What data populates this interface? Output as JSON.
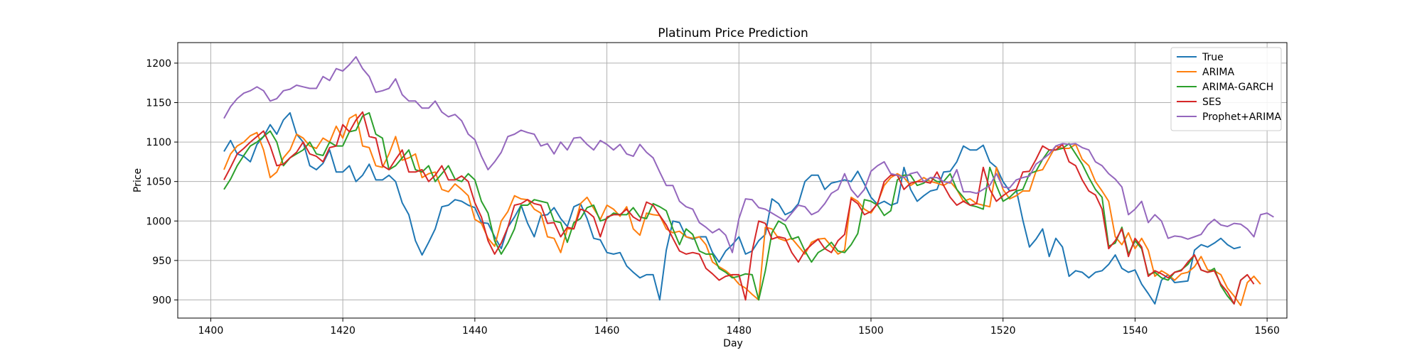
{
  "chart_data": {
    "type": "line",
    "title": "Platinum Price Prediction",
    "xlabel": "Day",
    "ylabel": "Price",
    "xlim": [
      1395,
      1563
    ],
    "ylim": [
      877,
      1226
    ],
    "xticks": [
      1400,
      1420,
      1440,
      1460,
      1480,
      1500,
      1520,
      1540,
      1560
    ],
    "yticks": [
      900,
      950,
      1000,
      1050,
      1100,
      1150,
      1200
    ],
    "grid": true,
    "legend_position": "top-right",
    "x_start": 1402,
    "series": [
      {
        "name": "True",
        "color": "#1f77b4",
        "values": [
          1088,
          1102,
          1085,
          1082,
          1075,
          1097,
          1107,
          1122,
          1110,
          1128,
          1137,
          1110,
          1100,
          1070,
          1065,
          1073,
          1090,
          1062,
          1062,
          1070,
          1050,
          1058,
          1072,
          1052,
          1052,
          1058,
          1050,
          1023,
          1008,
          975,
          957,
          973,
          990,
          1018,
          1020,
          1027,
          1025,
          1020,
          1017,
          998,
          997,
          980,
          965,
          992,
          1005,
          1020,
          997,
          980,
          1007,
          1008,
          1017,
          1003,
          993,
          1018,
          1022,
          1003,
          978,
          976,
          960,
          958,
          960,
          943,
          935,
          928,
          932,
          932,
          900,
          963,
          1000,
          998,
          980,
          977,
          980,
          980,
          960,
          948,
          962,
          970,
          980,
          958,
          962,
          975,
          983,
          1028,
          1022,
          1008,
          1012,
          1022,
          1050,
          1058,
          1058,
          1040,
          1048,
          1050,
          1052,
          1050,
          1063,
          1047,
          1030,
          1021,
          1025,
          1020,
          1023,
          1068,
          1040,
          1025,
          1032,
          1038,
          1040,
          1062,
          1063,
          1075,
          1095,
          1090,
          1090,
          1096,
          1075,
          1068,
          1050,
          1038,
          1040,
          1001,
          967,
          977,
          990,
          955,
          978,
          967,
          930,
          937,
          935,
          928,
          935,
          937,
          945,
          957,
          940,
          935,
          938,
          920,
          908,
          895,
          925,
          932,
          922,
          923,
          924,
          963,
          970,
          967,
          972,
          978,
          970,
          965,
          967
        ]
      },
      {
        "name": "ARIMA",
        "color": "#ff7f0e",
        "values": [
          1065,
          1085,
          1095,
          1100,
          1108,
          1112,
          1090,
          1055,
          1062,
          1080,
          1090,
          1110,
          1105,
          1095,
          1092,
          1105,
          1100,
          1120,
          1105,
          1130,
          1135,
          1095,
          1093,
          1070,
          1068,
          1085,
          1107,
          1077,
          1080,
          1085,
          1055,
          1060,
          1062,
          1040,
          1037,
          1047,
          1040,
          1032,
          1002,
          997,
          978,
          968,
          1000,
          1012,
          1032,
          1028,
          1027,
          1015,
          1010,
          980,
          978,
          960,
          990,
          990,
          1022,
          1030,
          1016,
          1002,
          1020,
          1015,
          1006,
          1018,
          990,
          982,
          1010,
          1008,
          1007,
          990,
          985,
          987,
          980,
          978,
          980,
          970,
          948,
          942,
          937,
          930,
          920,
          915,
          907,
          900,
          992,
          990,
          978,
          975,
          978,
          968,
          958,
          973,
          977,
          978,
          968,
          958,
          963,
          1030,
          1025,
          1015,
          1010,
          1023,
          1045,
          1055,
          1060,
          1055,
          1045,
          1050,
          1055,
          1050,
          1048,
          1045,
          1050,
          1040,
          1025,
          1028,
          1022,
          1020,
          1018,
          1068,
          1040,
          1028,
          1032,
          1038,
          1038,
          1063,
          1065,
          1080,
          1095,
          1092,
          1092,
          1097,
          1078,
          1070,
          1050,
          1038,
          1025,
          980,
          970,
          985,
          965,
          978,
          963,
          930,
          937,
          932,
          925,
          933,
          935,
          942,
          955,
          938,
          937,
          932,
          915,
          905,
          893,
          922,
          930,
          920
        ]
      },
      {
        "name": "ARIMA-GARCH",
        "color": "#2ca02c",
        "values": [
          1040,
          1053,
          1070,
          1083,
          1095,
          1100,
          1107,
          1114,
          1100,
          1070,
          1080,
          1085,
          1090,
          1100,
          1085,
          1083,
          1100,
          1095,
          1095,
          1113,
          1115,
          1133,
          1137,
          1110,
          1105,
          1065,
          1070,
          1080,
          1090,
          1065,
          1062,
          1070,
          1050,
          1060,
          1070,
          1053,
          1050,
          1060,
          1052,
          1025,
          1010,
          975,
          958,
          972,
          990,
          1020,
          1020,
          1027,
          1025,
          1023,
          1000,
          998,
          973,
          998,
          1003,
          1017,
          1020,
          1000,
          1003,
          1010,
          1008,
          1008,
          1017,
          1005,
          1003,
          1022,
          1018,
          1013,
          990,
          970,
          990,
          983,
          962,
          958,
          958,
          940,
          935,
          928,
          930,
          933,
          932,
          900,
          937,
          985,
          1000,
          995,
          977,
          980,
          962,
          948,
          960,
          965,
          973,
          962,
          960,
          970,
          984,
          1027,
          1025,
          1020,
          1007,
          1013,
          1052,
          1058,
          1058,
          1045,
          1048,
          1055,
          1050,
          1050,
          1060,
          1040,
          1030,
          1020,
          1018,
          1015,
          1068,
          1045,
          1025,
          1030,
          1038,
          1040,
          1060,
          1063,
          1078,
          1090,
          1090,
          1092,
          1098,
          1085,
          1072,
          1055,
          1040,
          1030,
          968,
          972,
          992,
          958,
          975,
          965,
          932,
          935,
          928,
          925,
          935,
          938,
          945,
          957,
          938,
          935,
          940,
          918,
          905,
          895,
          925,
          932
        ]
      },
      {
        "name": "SES",
        "color": "#d62728",
        "values": [
          1052,
          1068,
          1085,
          1092,
          1100,
          1107,
          1114,
          1095,
          1070,
          1072,
          1080,
          1087,
          1100,
          1085,
          1082,
          1075,
          1093,
          1095,
          1122,
          1113,
          1128,
          1138,
          1107,
          1105,
          1070,
          1065,
          1078,
          1090,
          1062,
          1062,
          1065,
          1050,
          1058,
          1070,
          1052,
          1052,
          1057,
          1050,
          1023,
          1005,
          975,
          958,
          972,
          992,
          1020,
          1022,
          1027,
          1022,
          1020,
          997,
          998,
          980,
          992,
          990,
          1015,
          1012,
          1005,
          980,
          1005,
          1008,
          1008,
          1015,
          1005,
          1000,
          1024,
          1020,
          1007,
          995,
          978,
          962,
          958,
          960,
          958,
          940,
          933,
          925,
          930,
          932,
          932,
          900,
          962,
          1000,
          997,
          977,
          980,
          978,
          960,
          948,
          962,
          970,
          977,
          965,
          960,
          975,
          983,
          1028,
          1022,
          1008,
          1012,
          1022,
          1050,
          1058,
          1058,
          1040,
          1048,
          1050,
          1050,
          1048,
          1062,
          1045,
          1030,
          1020,
          1025,
          1020,
          1022,
          1068,
          1040,
          1025,
          1032,
          1038,
          1040,
          1062,
          1063,
          1078,
          1095,
          1090,
          1090,
          1097,
          1075,
          1070,
          1052,
          1038,
          1033,
          1015,
          965,
          975,
          990,
          955,
          978,
          967,
          930,
          937,
          933,
          928,
          935,
          937,
          948,
          957,
          938,
          935,
          937,
          920,
          910,
          895,
          925,
          932,
          920
        ]
      },
      {
        "name": "Prophet+ARIMA",
        "color": "#9467bd",
        "values": [
          1130,
          1145,
          1155,
          1162,
          1165,
          1170,
          1165,
          1152,
          1155,
          1165,
          1167,
          1172,
          1170,
          1168,
          1168,
          1183,
          1178,
          1193,
          1190,
          1198,
          1208,
          1193,
          1183,
          1163,
          1165,
          1168,
          1180,
          1160,
          1152,
          1152,
          1143,
          1143,
          1152,
          1138,
          1132,
          1135,
          1127,
          1110,
          1103,
          1082,
          1065,
          1075,
          1087,
          1107,
          1110,
          1115,
          1112,
          1110,
          1095,
          1098,
          1085,
          1100,
          1090,
          1105,
          1106,
          1097,
          1090,
          1102,
          1097,
          1090,
          1097,
          1085,
          1082,
          1097,
          1087,
          1080,
          1062,
          1045,
          1045,
          1025,
          1018,
          1015,
          998,
          992,
          985,
          990,
          982,
          960,
          1003,
          1028,
          1027,
          1017,
          1015,
          1010,
          1005,
          1000,
          1010,
          1020,
          1018,
          1008,
          1012,
          1022,
          1035,
          1040,
          1060,
          1040,
          1030,
          1040,
          1063,
          1070,
          1075,
          1060,
          1058,
          1055,
          1060,
          1062,
          1050,
          1055,
          1055,
          1050,
          1048,
          1065,
          1037,
          1037,
          1035,
          1040,
          1045,
          1060,
          1043,
          1042,
          1052,
          1055,
          1057,
          1072,
          1078,
          1085,
          1095,
          1098,
          1097,
          1098,
          1093,
          1090,
          1075,
          1070,
          1060,
          1053,
          1043,
          1008,
          1015,
          1025,
          998,
          1008,
          1000,
          978,
          981,
          980,
          977,
          980,
          983,
          995,
          1002,
          995,
          993,
          997,
          996,
          990,
          980,
          1008,
          1010,
          1005
        ]
      }
    ]
  }
}
